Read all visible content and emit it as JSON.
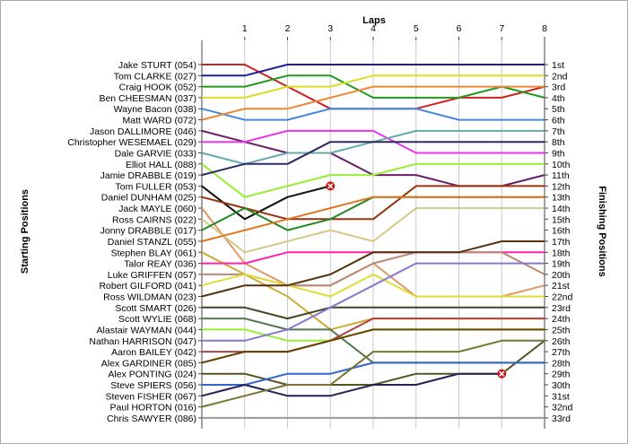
{
  "chart_data": {
    "type": "line",
    "title": "",
    "xlabel": "Laps",
    "ylabel_left": "Starting Positions",
    "ylabel_right": "Finishing Positions",
    "x": [
      0,
      1,
      2,
      3,
      4,
      5,
      6,
      7,
      8
    ],
    "x_tick_labels": [
      "1",
      "2",
      "3",
      "4",
      "5",
      "6",
      "7",
      "8"
    ],
    "drivers": [
      "Jake STURT (054)",
      "Tom CLARKE (027)",
      "Craig HOOK (052)",
      "Ben CHEESMAN (037)",
      "Wayne Bacon (038)",
      "Matt WARD (072)",
      "Jason DALLIMORE (046)",
      "Christopher WESEMAEL (029)",
      "Dale GARVIE (033)",
      "Elliot HALL (088)",
      "Jamie DRABBLE (019)",
      "Tom FULLER (053)",
      "Daniel DUNHAM (025)",
      "Jack MAYLE (060)",
      "Ross CAIRNS (022)",
      "Jonny DRABBLE (017)",
      "Daniel STANZL (055)",
      "Stephen BLAY (061)",
      "Talor REAY (036)",
      "Luke GRIFFEN (057)",
      "Robert GILFORD (041)",
      "Ross WILDMAN (023)",
      "Scott SMART (026)",
      "Scott WYLIE (068)",
      "Alastair WAYMAN (044)",
      "Nathan HARRISON (047)",
      "Aaron BAILEY (042)",
      "Alex GARDINER (085)",
      "Alex PONTING (024)",
      "Steve SPIERS (056)",
      "Steven FISHER (067)",
      "Paul HORTON (016)",
      "Chris SAWYER (086)"
    ],
    "finish_labels": [
      "1st",
      "2nd",
      "3rd",
      "4th",
      "5th",
      "6th",
      "7th",
      "8th",
      "9th",
      "10th",
      "11th",
      "12th",
      "13th",
      "14th",
      "15th",
      "16th",
      "17th",
      "18th",
      "19th",
      "20th",
      "21st",
      "22nd",
      "23rd",
      "24th",
      "25th",
      "26th",
      "27th",
      "28th",
      "29th",
      "30th",
      "31st",
      "32nd",
      "33rd"
    ],
    "ylim": [
      1,
      33
    ],
    "grid": "vertical",
    "series": [
      {
        "color": "#cc2222",
        "values": [
          1,
          1,
          3,
          5,
          5,
          5,
          4,
          4,
          3
        ],
        "retired": false
      },
      {
        "color": "#1f1f99",
        "values": [
          2,
          2,
          1,
          1,
          1,
          1,
          1,
          1,
          1
        ],
        "retired": false
      },
      {
        "color": "#229922",
        "values": [
          3,
          3,
          2,
          2,
          4,
          4,
          4,
          3,
          4
        ],
        "retired": false
      },
      {
        "color": "#dddd22",
        "values": [
          4,
          4,
          3,
          3,
          2,
          2,
          2,
          2,
          2
        ],
        "retired": false
      },
      {
        "color": "#4488dd",
        "values": [
          5,
          6,
          6,
          5,
          5,
          5,
          6,
          6,
          6
        ],
        "retired": false
      },
      {
        "color": "#ee8833",
        "values": [
          6,
          5,
          5,
          4,
          3,
          3,
          3,
          3,
          3
        ],
        "retired": false
      },
      {
        "color": "#6a1b6a",
        "values": [
          7,
          8,
          9,
          9,
          11,
          11,
          12,
          12,
          11
        ],
        "retired": false
      },
      {
        "color": "#ee33ee",
        "values": [
          8,
          8,
          7,
          7,
          7,
          9,
          9,
          9,
          9
        ],
        "retired": false
      },
      {
        "color": "#66aaaa",
        "values": [
          9,
          10,
          9,
          9,
          8,
          7,
          7,
          7,
          7
        ],
        "retired": false
      },
      {
        "color": "#99ee33",
        "values": [
          10,
          13,
          12,
          11,
          11,
          10,
          10,
          10,
          10
        ],
        "retired": false
      },
      {
        "color": "#2a2a66",
        "values": [
          11,
          10,
          10,
          8,
          8,
          8,
          8,
          8,
          8
        ],
        "retired": false
      },
      {
        "color": "#111111",
        "values": [
          12,
          15,
          13,
          12,
          null,
          null,
          null,
          null,
          null
        ],
        "retired": true
      },
      {
        "color": "#993311",
        "values": [
          13,
          14,
          15,
          15,
          15,
          12,
          12,
          12,
          12
        ],
        "retired": false
      },
      {
        "color": "#dd9966",
        "values": [
          14,
          19,
          21,
          21,
          19,
          22,
          22,
          22,
          21
        ],
        "retired": false
      },
      {
        "color": "#d4c88a",
        "values": [
          15,
          18,
          17,
          16,
          17,
          14,
          14,
          14,
          14
        ],
        "retired": false
      },
      {
        "color": "#228822",
        "values": [
          16,
          14,
          16,
          15,
          13,
          13,
          13,
          13,
          13
        ],
        "retired": false
      },
      {
        "color": "#dd7722",
        "values": [
          17,
          16,
          15,
          14,
          13,
          13,
          13,
          13,
          13
        ],
        "retired": false
      },
      {
        "color": "#ccaa33",
        "values": [
          18,
          20,
          22,
          25,
          24,
          24,
          24,
          24,
          24
        ],
        "retired": false
      },
      {
        "color": "#ff22aa",
        "values": [
          19,
          19,
          18,
          18,
          18,
          18,
          18,
          18,
          18
        ],
        "retired": false
      },
      {
        "color": "#bb8877",
        "values": [
          20,
          20,
          21,
          21,
          19,
          18,
          18,
          18,
          20
        ],
        "retired": false
      },
      {
        "color": "#dddd33",
        "values": [
          21,
          20,
          21,
          22,
          20,
          22,
          22,
          22,
          22
        ],
        "retired": false
      },
      {
        "color": "#553311",
        "values": [
          22,
          21,
          21,
          20,
          18,
          18,
          18,
          17,
          17
        ],
        "retired": false
      },
      {
        "color": "#444422",
        "values": [
          23,
          23,
          24,
          23,
          23,
          23,
          23,
          23,
          23
        ],
        "retired": false
      },
      {
        "color": "#557755",
        "values": [
          24,
          24,
          25,
          25,
          28,
          28,
          28,
          28,
          28
        ],
        "retired": false
      },
      {
        "color": "#99ee33",
        "values": [
          25,
          25,
          26,
          26,
          25,
          25,
          25,
          25,
          25
        ],
        "retired": false
      },
      {
        "color": "#8877cc",
        "values": [
          26,
          26,
          25,
          23,
          21,
          19,
          19,
          19,
          19
        ],
        "retired": false
      },
      {
        "color": "#aa4444",
        "values": [
          27,
          27,
          27,
          26,
          24,
          24,
          24,
          24,
          24
        ],
        "retired": false
      },
      {
        "color": "#664400",
        "values": [
          28,
          27,
          27,
          26,
          25,
          25,
          25,
          25,
          25
        ],
        "retired": false
      },
      {
        "color": "#555522",
        "values": [
          29,
          29,
          30,
          30,
          30,
          29,
          29,
          29,
          26
        ],
        "retired": false
      },
      {
        "color": "#3366cc",
        "values": [
          30,
          30,
          29,
          29,
          28,
          28,
          28,
          28,
          28
        ],
        "retired": false
      },
      {
        "color": "#222255",
        "values": [
          31,
          30,
          31,
          31,
          30,
          30,
          29,
          29,
          null
        ],
        "retired": true
      },
      {
        "color": "#777733",
        "values": [
          32,
          31,
          30,
          30,
          27,
          27,
          27,
          26,
          26
        ],
        "retired": false
      },
      {
        "color": "#999999",
        "values": [
          33,
          33,
          33,
          33,
          33,
          33,
          33,
          33,
          33
        ],
        "retired": false
      }
    ]
  }
}
